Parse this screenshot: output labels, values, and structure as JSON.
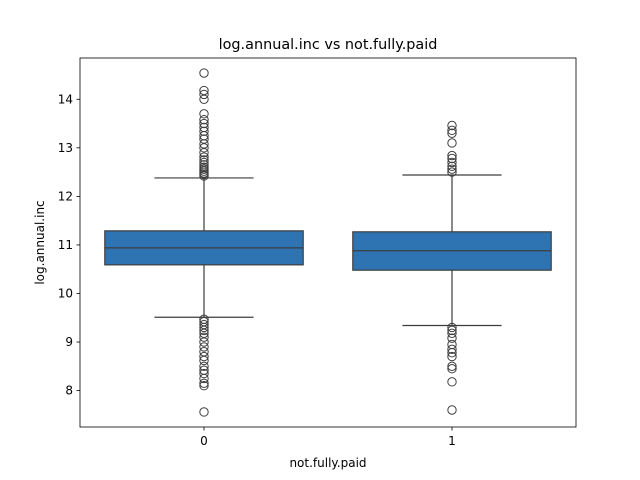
{
  "chart_data": {
    "type": "boxplot",
    "title": "log.annual.inc vs not.fully.paid",
    "xlabel": "not.fully.paid",
    "ylabel": "log.annual.inc",
    "ylim": [
      7.25,
      14.85
    ],
    "yticks": [
      8,
      9,
      10,
      11,
      12,
      13,
      14
    ],
    "categories": [
      "0",
      "1"
    ],
    "box_color": "#2f74b2",
    "line_color": "#3d3d3d",
    "grid": false,
    "boxes": [
      {
        "category": "0",
        "q1": 10.59,
        "median": 10.94,
        "q3": 11.29,
        "whisker_low": 9.51,
        "whisker_high": 12.38,
        "outliers_high": [
          12.42,
          12.45,
          12.48,
          12.52,
          12.56,
          12.6,
          12.65,
          12.7,
          12.75,
          12.81,
          12.9,
          13.0,
          13.08,
          13.18,
          13.25,
          13.34,
          13.42,
          13.5,
          13.58,
          13.7,
          14.0,
          14.1,
          14.18,
          14.54
        ],
        "outliers_low": [
          9.47,
          9.42,
          9.36,
          9.3,
          9.24,
          9.18,
          9.1,
          9.0,
          8.9,
          8.8,
          8.7,
          8.62,
          8.5,
          8.42,
          8.35,
          8.25,
          8.15,
          8.1,
          7.56
        ]
      },
      {
        "category": "1",
        "q1": 10.48,
        "median": 10.88,
        "q3": 11.27,
        "whisker_low": 9.34,
        "whisker_high": 12.44,
        "outliers_high": [
          12.5,
          12.56,
          12.62,
          12.7,
          12.78,
          12.84,
          13.1,
          13.3,
          13.36,
          13.46
        ],
        "outliers_low": [
          9.3,
          9.24,
          9.18,
          9.08,
          8.95,
          8.85,
          8.78,
          8.7,
          8.5,
          8.45,
          8.18,
          7.6
        ]
      }
    ]
  }
}
